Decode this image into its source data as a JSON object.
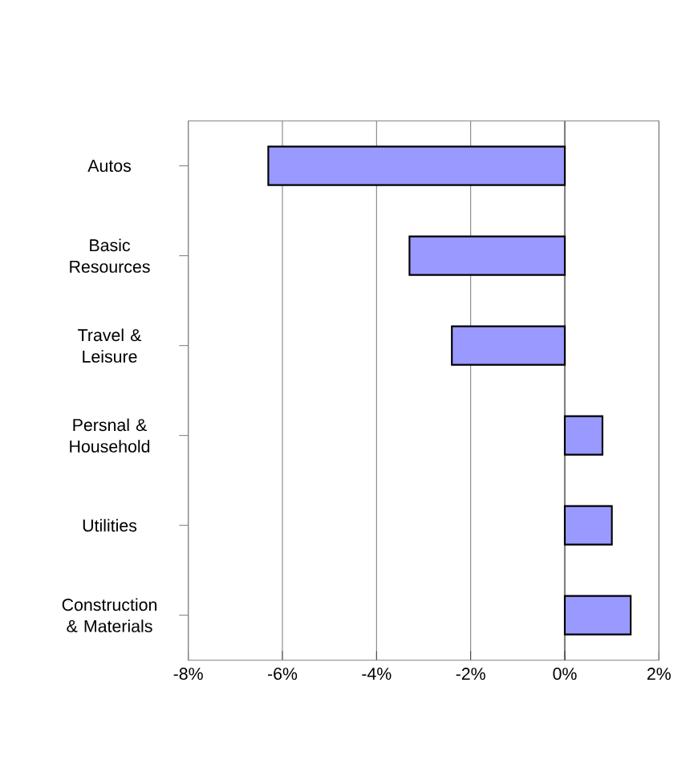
{
  "chart_data": {
    "type": "bar",
    "orientation": "horizontal",
    "categories": [
      "Autos",
      "Basic Resources",
      "Travel & Leisure",
      "Persnal & Household",
      "Utilities",
      "Construction & Materials"
    ],
    "values": [
      -6.3,
      -3.3,
      -2.4,
      0.8,
      1.0,
      1.4
    ],
    "color": "#9999ff",
    "xlim": [
      -8,
      2
    ],
    "xticks": [
      {
        "value": -8,
        "label": "-8%"
      },
      {
        "value": -6,
        "label": "-6%"
      },
      {
        "value": -4,
        "label": "-4%"
      },
      {
        "value": -2,
        "label": "-2%"
      },
      {
        "value": 0,
        "label": "0%"
      },
      {
        "value": 2,
        "label": "2%"
      }
    ],
    "grid": "x"
  }
}
